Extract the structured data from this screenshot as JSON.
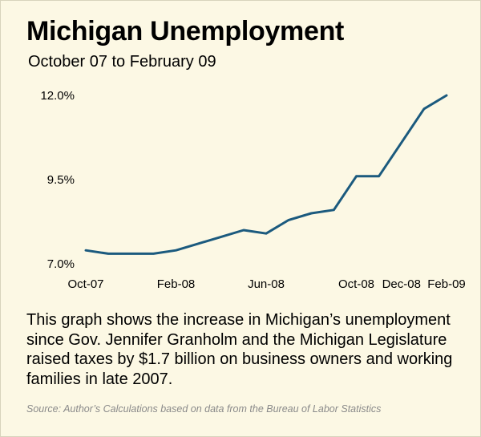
{
  "header": {
    "title": "Michigan Unemployment",
    "subtitle": "October 07 to February 09"
  },
  "caption": "This graph shows the increase in Michigan’s unemployment since Gov. Jennifer Granholm and the Michigan Legislature raised taxes by $1.7 billion on business owners and working families in late 2007.",
  "source": "Source: Author’s Calculations based on data from the Bureau of Labor Statistics",
  "colors": {
    "line": "#1b5a7e",
    "background": "#fcf8e4"
  },
  "chart_data": {
    "type": "line",
    "title": "Michigan Unemployment",
    "subtitle": "October 07 to February 09",
    "xlabel": "",
    "ylabel": "",
    "grid": false,
    "legend": "none",
    "ylim": [
      7.0,
      12.0
    ],
    "y_ticks": [
      "7.0%",
      "9.5%",
      "12.0%"
    ],
    "x_tick_labels": [
      "Oct-07",
      "Feb-08",
      "Jun-08",
      "Oct-08",
      "Dec-08",
      "Feb-09"
    ],
    "x": [
      "Oct-07",
      "Nov-07",
      "Dec-07",
      "Jan-08",
      "Feb-08",
      "Mar-08",
      "Apr-08",
      "May-08",
      "Jun-08",
      "Jul-08",
      "Aug-08",
      "Sep-08",
      "Oct-08",
      "Nov-08",
      "Dec-08",
      "Jan-09",
      "Feb-09"
    ],
    "series": [
      {
        "values": [
          7.4,
          7.3,
          7.3,
          7.3,
          7.4,
          7.6,
          7.8,
          8.0,
          7.9,
          8.3,
          8.5,
          8.6,
          9.6,
          9.6,
          10.6,
          11.6,
          12.0
        ]
      }
    ]
  }
}
